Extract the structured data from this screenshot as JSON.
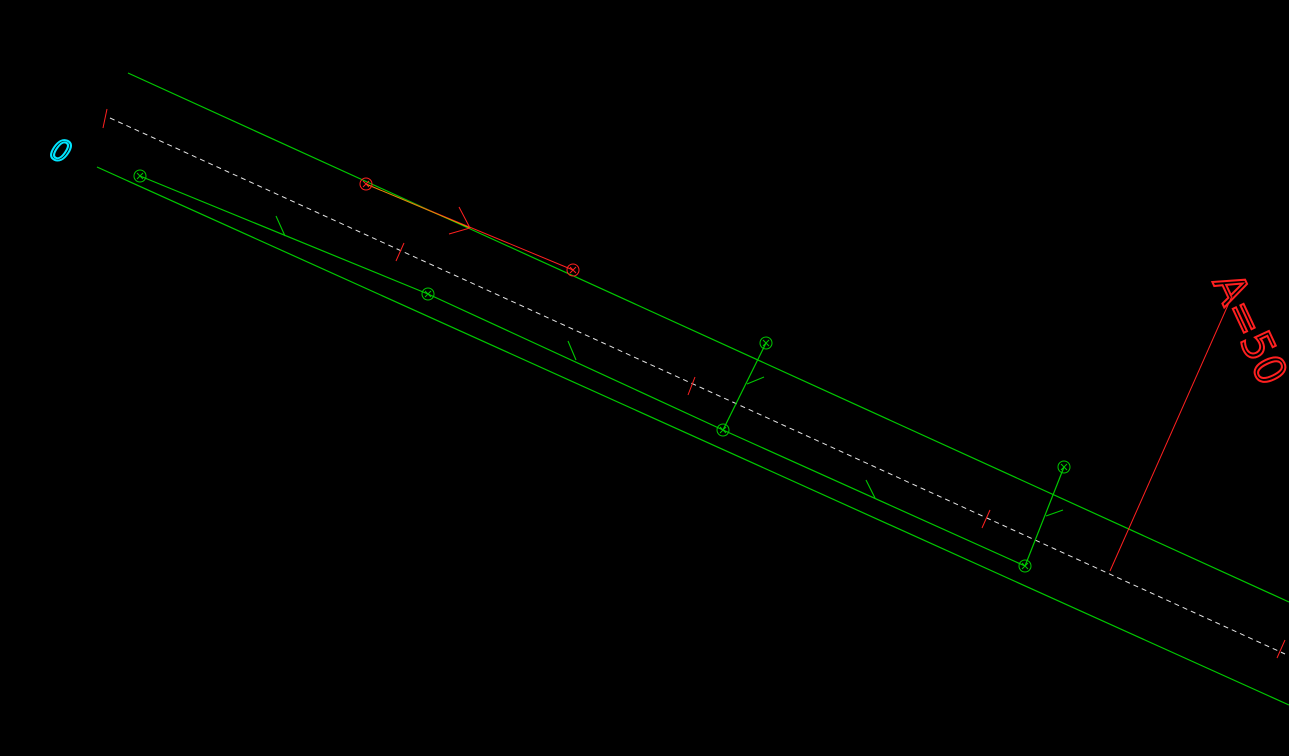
{
  "drawing": {
    "background": "#000000",
    "colors": {
      "edge_line": "#00c800",
      "centerline": "#e6e6e6",
      "station_tick": "#ff2020",
      "offset_label": "#00e5ff",
      "annotation": "#ff2020",
      "node_green": "#00c800",
      "node_red": "#ff2020"
    },
    "labels": {
      "station_zero": "0",
      "radius_annotation": "A=50"
    }
  }
}
